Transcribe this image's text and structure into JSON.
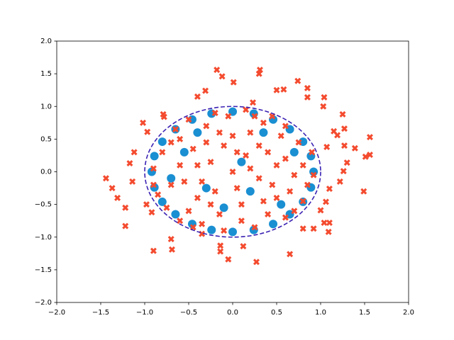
{
  "chart_data": {
    "type": "scatter",
    "xlim": [
      -2,
      2
    ],
    "ylim": [
      -2,
      2
    ],
    "xticks": [
      {
        "value": -2,
        "label": "−2.0"
      },
      {
        "value": -1.5,
        "label": "−1.5"
      },
      {
        "value": -1,
        "label": "−1.0"
      },
      {
        "value": -0.5,
        "label": "−0.5"
      },
      {
        "value": 0,
        "label": "0.0"
      },
      {
        "value": 0.5,
        "label": "0.5"
      },
      {
        "value": 1,
        "label": "1.0"
      },
      {
        "value": 1.5,
        "label": "1.5"
      },
      {
        "value": 2,
        "label": "2.0"
      }
    ],
    "yticks": [
      {
        "value": -2,
        "label": "−2.0"
      },
      {
        "value": -1.5,
        "label": "−1.5"
      },
      {
        "value": -1,
        "label": "−1.0"
      },
      {
        "value": -0.5,
        "label": "−0.5"
      },
      {
        "value": 0,
        "label": "0.0"
      },
      {
        "value": 0.5,
        "label": "0.5"
      },
      {
        "value": 1,
        "label": "1.0"
      },
      {
        "value": 1.5,
        "label": "1.5"
      },
      {
        "value": 2,
        "label": "2.0"
      }
    ],
    "series": [
      {
        "marker": "circle",
        "color": "#1a8fd2",
        "x": [
          0.92,
          0.89,
          0.8,
          0.65,
          0.46,
          0.24,
          0,
          -0.24,
          -0.46,
          -0.65,
          -0.8,
          -0.89,
          -0.92,
          -0.89,
          -0.8,
          -0.65,
          -0.46,
          -0.24,
          0,
          0.24,
          0.46,
          0.65,
          0.8,
          0.89,
          -0.55,
          -0.3,
          0.1,
          0.35,
          0.55,
          -0.1,
          0.7,
          -0.7,
          0.2,
          -0.4
        ],
        "y": [
          0,
          0.24,
          0.46,
          0.65,
          0.8,
          0.89,
          0.92,
          0.89,
          0.8,
          0.65,
          0.46,
          0.24,
          0,
          -0.24,
          -0.46,
          -0.65,
          -0.8,
          -0.89,
          -0.92,
          -0.89,
          -0.8,
          -0.65,
          -0.46,
          -0.24,
          0.3,
          -0.25,
          0.15,
          0.6,
          -0.5,
          -0.55,
          0.3,
          -0.1,
          -0.3,
          0.6
        ]
      },
      {
        "marker": "x",
        "color": "#f44b2f",
        "x": [
          -1.44,
          -1.37,
          -1.31,
          -1.22,
          -1.22,
          -1.12,
          -1.17,
          -1.14,
          -1.02,
          -0.97,
          -0.9,
          -0.69,
          -0.7,
          -0.92,
          -0.98,
          -0.79,
          -0.78,
          -0.4,
          -0.31,
          -0.18,
          -0.12,
          0.01,
          0.31,
          0.3,
          0.23,
          0.5,
          0.58,
          0.74,
          0.85,
          0.85,
          1.04,
          1.03,
          1.25,
          1.27,
          1.19,
          1.15,
          1.07,
          1.27,
          1.39,
          1.56,
          1.56,
          1.51,
          1.3,
          1.26,
          1.49,
          1.22,
          1.1,
          1.06,
          1.0,
          1.04,
          1.1,
          1.09,
          0.92,
          0.8,
          0.65,
          0.27,
          -0.05,
          -0.14,
          -0.14,
          0.12,
          -0.35,
          -0.8,
          -0.7,
          -0.6,
          -0.5,
          -0.4,
          -0.3,
          -0.2,
          -0.1,
          0,
          0.1,
          0.2,
          0.3,
          0.4,
          0.5,
          0.6,
          0.7,
          0.8,
          -0.85,
          -0.65,
          -0.55,
          -0.45,
          -0.35,
          -0.25,
          -0.15,
          -0.05,
          0.05,
          0.15,
          0.25,
          0.35,
          0.45,
          0.55,
          0.65,
          0.75,
          0.85,
          -0.9,
          -0.75,
          -0.6,
          -0.5,
          -0.4,
          -0.3,
          -0.2,
          -0.1,
          0.0,
          0.1,
          0.2,
          0.3,
          0.4,
          0.5,
          0.6,
          0.7,
          0.8,
          0.9,
          -0.7,
          -0.35,
          0.05,
          0.35,
          -0.15,
          0.25,
          -0.6,
          0.6,
          -0.9,
          0.92,
          0.15,
          -0.45,
          0.45,
          -0.25
        ],
        "y": [
          -0.1,
          -0.25,
          -0.4,
          -0.55,
          -0.83,
          0.3,
          0.13,
          -0.15,
          0.75,
          0.61,
          -1.21,
          -1.19,
          -1.03,
          -0.62,
          -0.5,
          0.88,
          0.84,
          1.15,
          1.24,
          1.56,
          1.46,
          1.37,
          1.56,
          1.5,
          1.06,
          1.25,
          1.26,
          1.39,
          1.28,
          1.14,
          1.14,
          1.0,
          0.88,
          0.66,
          0.56,
          0.62,
          0.38,
          0.4,
          0.36,
          0.53,
          0.26,
          0.23,
          0.14,
          0.01,
          -0.3,
          -0.15,
          -0.26,
          -0.46,
          -0.59,
          -0.78,
          -0.78,
          -0.92,
          -0.87,
          -0.87,
          -1.26,
          -1.38,
          -1.34,
          -1.22,
          -1.13,
          -1.14,
          -0.95,
          0.3,
          -0.2,
          0.5,
          -0.6,
          0.1,
          0.7,
          -0.3,
          0.4,
          0,
          -0.5,
          0.6,
          -0.1,
          0.3,
          -0.4,
          0.2,
          -0.6,
          0.1,
          -0.35,
          0.65,
          -0.15,
          0.35,
          -0.8,
          0.15,
          -0.65,
          0.85,
          -0.25,
          0.25,
          -0.85,
          0.75,
          -0.2,
          0.55,
          -0.3,
          0.45,
          -0.2,
          0.05,
          -0.55,
          0.1,
          0.8,
          -0.4,
          0.45,
          0.9,
          -0.9,
          0.55,
          -0.75,
          0.05,
          0.4,
          -0.65,
          0.1,
          0.7,
          -0.05,
          -0.45,
          0.3,
          0.45,
          -0.15,
          0.3,
          -0.45,
          0.6,
          0.85,
          -0.75,
          -0.7,
          -0.2,
          -0.05,
          0.95,
          -0.85,
          0.85,
          -0.5
        ]
      }
    ],
    "circle": {
      "cx": 0,
      "cy": 0,
      "r": 1,
      "color": "#3b22b3"
    }
  }
}
